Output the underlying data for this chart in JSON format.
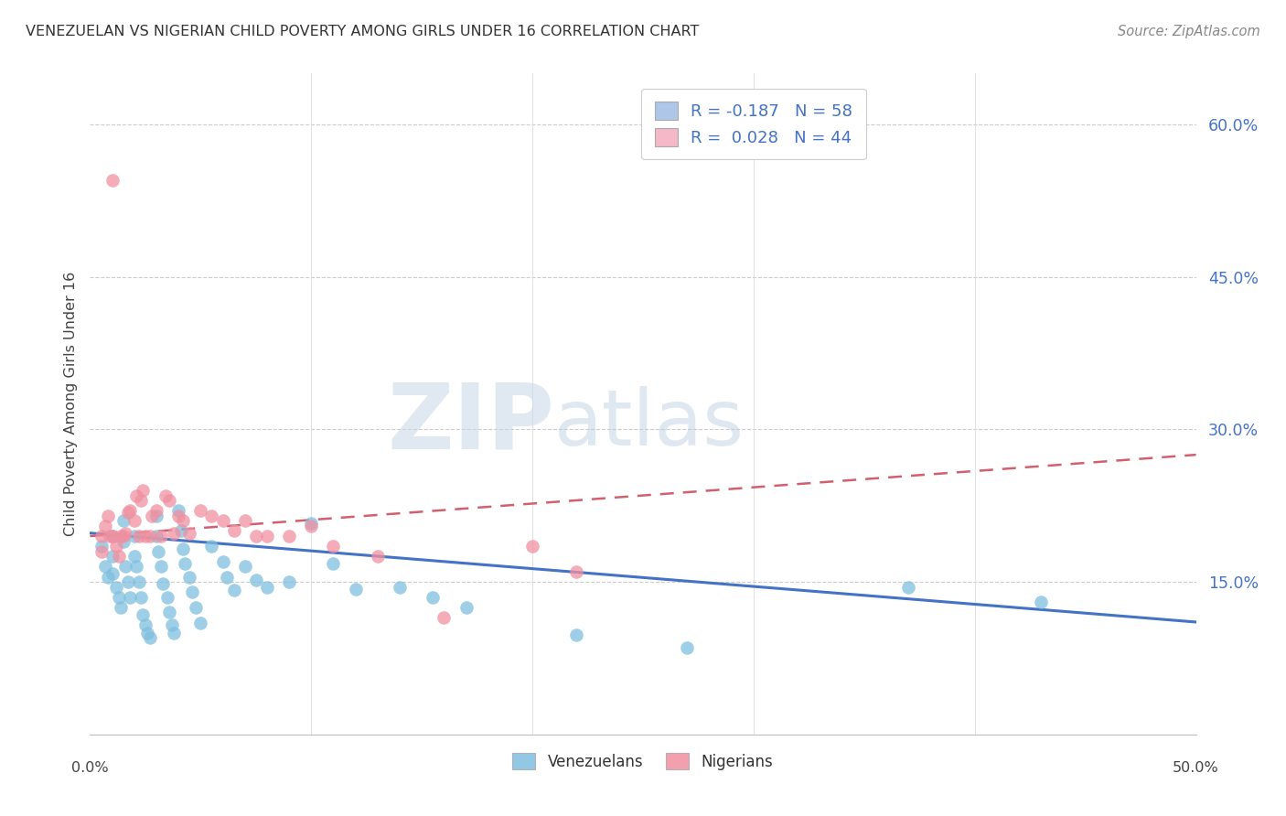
{
  "title": "VENEZUELAN VS NIGERIAN CHILD POVERTY AMONG GIRLS UNDER 16 CORRELATION CHART",
  "source": "Source: ZipAtlas.com",
  "ylabel": "Child Poverty Among Girls Under 16",
  "right_yticks": [
    "60.0%",
    "45.0%",
    "30.0%",
    "15.0%"
  ],
  "right_ytick_vals": [
    0.6,
    0.45,
    0.3,
    0.15
  ],
  "xlim": [
    0.0,
    0.5
  ],
  "ylim": [
    0.0,
    0.65
  ],
  "legend_entries": [
    {
      "label_r": "R = -0.187",
      "label_n": "N = 58",
      "color": "#aec6e8"
    },
    {
      "label_r": "R =  0.028",
      "label_n": "N = 44",
      "color": "#f4b8c8"
    }
  ],
  "legend_bottom": [
    "Venezuelans",
    "Nigerians"
  ],
  "venezuelan_color": "#7fbfdf",
  "nigerian_color": "#f090a0",
  "trendline_ven_color": "#4472c4",
  "trendline_nig_color": "#d06070",
  "watermark_zip": "ZIP",
  "watermark_atlas": "atlas",
  "ven_trendline": [
    0.198,
    -0.175
  ],
  "nig_trendline": [
    0.195,
    0.16
  ],
  "venezuelans_x": [
    0.005,
    0.007,
    0.008,
    0.01,
    0.01,
    0.01,
    0.012,
    0.013,
    0.014,
    0.015,
    0.015,
    0.016,
    0.017,
    0.018,
    0.02,
    0.02,
    0.021,
    0.022,
    0.023,
    0.024,
    0.025,
    0.026,
    0.027,
    0.03,
    0.03,
    0.031,
    0.032,
    0.033,
    0.035,
    0.036,
    0.037,
    0.038,
    0.04,
    0.041,
    0.042,
    0.043,
    0.045,
    0.046,
    0.048,
    0.05,
    0.055,
    0.06,
    0.062,
    0.065,
    0.07,
    0.075,
    0.08,
    0.09,
    0.1,
    0.11,
    0.12,
    0.14,
    0.155,
    0.17,
    0.22,
    0.27,
    0.37,
    0.43
  ],
  "venezuelans_y": [
    0.185,
    0.165,
    0.155,
    0.195,
    0.175,
    0.158,
    0.145,
    0.135,
    0.125,
    0.21,
    0.19,
    0.165,
    0.15,
    0.135,
    0.195,
    0.175,
    0.165,
    0.15,
    0.135,
    0.118,
    0.108,
    0.1,
    0.095,
    0.215,
    0.195,
    0.18,
    0.165,
    0.148,
    0.135,
    0.12,
    0.108,
    0.1,
    0.22,
    0.2,
    0.182,
    0.168,
    0.155,
    0.14,
    0.125,
    0.11,
    0.185,
    0.17,
    0.155,
    0.142,
    0.165,
    0.152,
    0.145,
    0.15,
    0.208,
    0.168,
    0.143,
    0.145,
    0.135,
    0.125,
    0.098,
    0.085,
    0.145,
    0.13
  ],
  "nigerians_x": [
    0.005,
    0.005,
    0.007,
    0.008,
    0.009,
    0.01,
    0.01,
    0.012,
    0.013,
    0.014,
    0.015,
    0.016,
    0.017,
    0.018,
    0.02,
    0.021,
    0.022,
    0.023,
    0.024,
    0.025,
    0.027,
    0.028,
    0.03,
    0.032,
    0.034,
    0.036,
    0.038,
    0.04,
    0.042,
    0.045,
    0.05,
    0.055,
    0.06,
    0.065,
    0.07,
    0.075,
    0.08,
    0.09,
    0.1,
    0.11,
    0.13,
    0.16,
    0.2,
    0.22
  ],
  "nigerians_y": [
    0.195,
    0.18,
    0.205,
    0.215,
    0.195,
    0.545,
    0.195,
    0.185,
    0.175,
    0.195,
    0.195,
    0.198,
    0.218,
    0.22,
    0.21,
    0.235,
    0.195,
    0.23,
    0.24,
    0.195,
    0.195,
    0.215,
    0.22,
    0.195,
    0.235,
    0.23,
    0.198,
    0.215,
    0.21,
    0.198,
    0.22,
    0.215,
    0.21,
    0.2,
    0.21,
    0.195,
    0.195,
    0.195,
    0.205,
    0.185,
    0.175,
    0.115,
    0.185,
    0.16
  ]
}
